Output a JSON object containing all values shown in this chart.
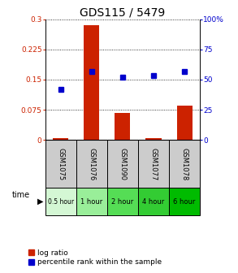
{
  "title": "GDS115 / 5479",
  "samples": [
    "GSM1075",
    "GSM1076",
    "GSM1090",
    "GSM1077",
    "GSM1078"
  ],
  "time_labels": [
    "0.5 hour",
    "1 hour",
    "2 hour",
    "4 hour",
    "6 hour"
  ],
  "log_ratio": [
    0.005,
    0.285,
    0.068,
    0.005,
    0.085
  ],
  "percentile_rank": [
    42,
    57,
    52,
    53,
    57
  ],
  "left_yticks": [
    0,
    0.075,
    0.15,
    0.225,
    0.3
  ],
  "left_yticklabels": [
    "0",
    "0.075",
    "0.15",
    "0.225",
    "0.3"
  ],
  "right_yticks": [
    0,
    25,
    50,
    75,
    100
  ],
  "right_yticklabels": [
    "0",
    "25",
    "50",
    "75",
    "100%"
  ],
  "ylim_left": [
    0,
    0.3
  ],
  "ylim_right": [
    0,
    100
  ],
  "bar_color": "#cc2200",
  "dot_color": "#0000cc",
  "time_colors": [
    "#d4f7d4",
    "#99ee99",
    "#55dd55",
    "#33cc33",
    "#00bb00"
  ],
  "sample_bg": "#cccccc",
  "title_fontsize": 10,
  "tick_fontsize": 6.5,
  "legend_fontsize": 6.5
}
